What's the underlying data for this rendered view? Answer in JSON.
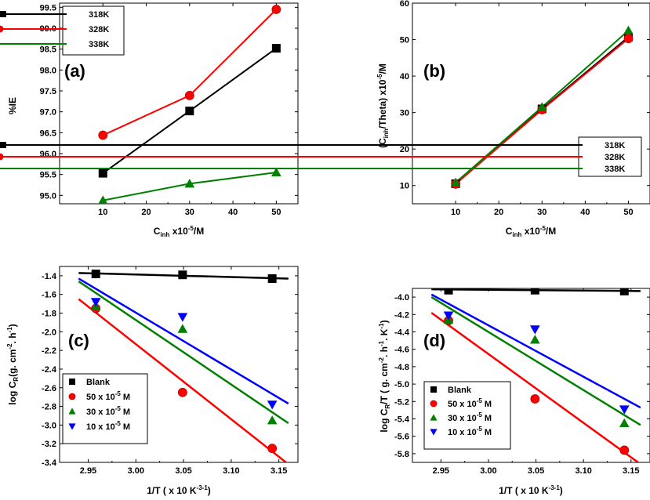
{
  "chart_data": [
    {
      "id": "a",
      "type": "line",
      "panel_label": "(a)",
      "xlabel": {
        "main": "C",
        "sub": "inh",
        "rest": " x10",
        "sup": "-5",
        "tail": "/M"
      },
      "ylabel": {
        "main": "%IE"
      },
      "xlim": [
        0,
        55
      ],
      "ylim": [
        94.8,
        99.6
      ],
      "x_ticks": [
        10,
        20,
        30,
        40,
        50
      ],
      "x_tick_labels": [
        "10",
        "20",
        "30",
        "40",
        "50"
      ],
      "y_ticks": [
        95.0,
        95.5,
        96.0,
        96.5,
        97.0,
        97.5,
        98.0,
        98.5,
        99.0,
        99.5
      ],
      "y_tick_labels": [
        "95.0",
        "95.5",
        "96.0",
        "96.5",
        "97.0",
        "97.5",
        "98.0",
        "98.5",
        "99.0",
        "99.5"
      ],
      "legend_position": "top-left",
      "x": [
        10,
        30,
        50
      ],
      "series": [
        {
          "name": "318K",
          "color": "#000000",
          "marker": "square",
          "values": [
            95.53,
            97.02,
            98.52
          ]
        },
        {
          "name": "328K",
          "color": "#ff0000",
          "marker": "circle",
          "values": [
            96.44,
            97.39,
            99.45
          ]
        },
        {
          "name": "338K",
          "color": "#008000",
          "marker": "triangle-up",
          "values": [
            94.88,
            95.28,
            95.55
          ]
        }
      ]
    },
    {
      "id": "b",
      "type": "line",
      "panel_label": "(b)",
      "xlabel": {
        "main": "C",
        "sub": "inh",
        "rest": " x10",
        "sup": "-5",
        "tail": "/M"
      },
      "ylabel": {
        "main": "(C",
        "sub": "inh",
        "rest": "/Theta) x10",
        "sup": "-5",
        "tail": "/M"
      },
      "xlim": [
        0,
        55
      ],
      "ylim": [
        5,
        60
      ],
      "x_ticks": [
        10,
        20,
        30,
        40,
        50
      ],
      "x_tick_labels": [
        "10",
        "20",
        "30",
        "40",
        "50"
      ],
      "y_ticks": [
        10,
        20,
        30,
        40,
        50,
        60
      ],
      "y_tick_labels": [
        "10",
        "20",
        "30",
        "40",
        "50",
        "60"
      ],
      "legend_position": "right",
      "x": [
        10,
        30,
        50
      ],
      "series": [
        {
          "name": "318K",
          "color": "#000000",
          "marker": "square",
          "values": [
            10.5,
            31.0,
            50.7
          ]
        },
        {
          "name": "328K",
          "color": "#ff0000",
          "marker": "circle",
          "values": [
            10.4,
            30.8,
            50.3
          ]
        },
        {
          "name": "338K",
          "color": "#008000",
          "marker": "triangle-up",
          "values": [
            10.8,
            31.5,
            52.5
          ]
        }
      ]
    },
    {
      "id": "c",
      "type": "scatter",
      "panel_label": "(c)",
      "xlabel": {
        "main": "1/T ( x 10",
        "sup": "-3",
        "rest": " K",
        "sup2": "-1",
        "tail": ")"
      },
      "ylabel": {
        "main": "log C",
        "sub": "R",
        "rest": "(g. cm",
        "sup": "-2",
        "rest2": ". h",
        "sup2": "-1",
        "tail": ")"
      },
      "xlim": [
        2.92,
        3.17
      ],
      "ylim": [
        -3.4,
        -1.3
      ],
      "x_ticks": [
        2.95,
        3.0,
        3.05,
        3.1,
        3.15
      ],
      "x_tick_labels": [
        "2.95",
        "3.00",
        "3.05",
        "3.10",
        "3.15"
      ],
      "y_ticks": [
        -3.4,
        -3.2,
        -3.0,
        -2.8,
        -2.6,
        -2.4,
        -2.2,
        -2.0,
        -1.8,
        -1.6,
        -1.4
      ],
      "y_tick_labels": [
        "-3.4",
        "-3.2",
        "-3.0",
        "-2.8",
        "-2.6",
        "-2.4",
        "-2.2",
        "-2.0",
        "-1.8",
        "-1.6",
        "-1.4"
      ],
      "legend_position": "bottom-left",
      "x": [
        2.958,
        3.049,
        3.143
      ],
      "fit_x_range": [
        2.94,
        3.16
      ],
      "series": [
        {
          "name": "Blank",
          "color": "#000000",
          "marker": "square",
          "values": [
            -1.38,
            -1.39,
            -1.43
          ],
          "fit": [
            -1.37,
            -1.43
          ]
        },
        {
          "name": "50 x 10",
          "sup": "-5",
          "suffix": " M",
          "color": "#ff0000",
          "marker": "circle",
          "values": [
            -1.75,
            -2.65,
            -3.25
          ],
          "fit": [
            -1.65,
            -3.42
          ]
        },
        {
          "name": "30 x 10",
          "sup": "-5",
          "suffix": " M",
          "color": "#008000",
          "marker": "triangle-up",
          "values": [
            -1.73,
            -1.97,
            -2.95
          ],
          "fit": [
            -1.46,
            -2.98
          ]
        },
        {
          "name": "10 x 10",
          "sup": "-5",
          "suffix": " M",
          "color": "#0000ff",
          "marker": "triangle-down",
          "values": [
            -1.68,
            -1.84,
            -2.78
          ],
          "fit": [
            -1.43,
            -2.77
          ]
        }
      ]
    },
    {
      "id": "d",
      "type": "scatter",
      "panel_label": "(d)",
      "xlabel": {
        "main": "1/T ( x 10",
        "sup": "-3",
        "rest": " K",
        "sup2": "-1",
        "tail": ")"
      },
      "ylabel": {
        "main": "log C",
        "sub": "R",
        "rest": "/T ( g. cm",
        "sup": "-2",
        "rest2": ". h",
        "sup2": "-1",
        "rest3": ". K",
        "sup3": "-1",
        "tail": ")"
      },
      "xlim": [
        2.92,
        3.17
      ],
      "ylim": [
        -5.9,
        -3.9
      ],
      "x_ticks": [
        2.95,
        3.0,
        3.05,
        3.1,
        3.15
      ],
      "x_tick_labels": [
        "2.95",
        "3.00",
        "3.05",
        "3.10",
        "3.15"
      ],
      "y_ticks": [
        -5.8,
        -5.6,
        -5.4,
        -5.2,
        -5.0,
        -4.8,
        -4.6,
        -4.4,
        -4.2,
        -4.0
      ],
      "y_tick_labels": [
        "-5.8",
        "-5.6",
        "-5.4",
        "-5.2",
        "-5.0",
        "-4.8",
        "-4.6",
        "-4.4",
        "-4.2",
        "-4.0"
      ],
      "legend_position": "bottom-left",
      "x": [
        2.958,
        3.049,
        3.143
      ],
      "fit_x_range": [
        2.94,
        3.16
      ],
      "series": [
        {
          "name": "Blank",
          "color": "#000000",
          "marker": "square",
          "values": [
            -3.92,
            -3.92,
            -3.93
          ],
          "fit": [
            -3.91,
            -3.93
          ]
        },
        {
          "name": "50 x 10",
          "sup": "-5",
          "suffix": " M",
          "color": "#ff0000",
          "marker": "circle",
          "values": [
            -4.27,
            -5.17,
            -5.76
          ],
          "fit": [
            -4.18,
            -5.92
          ]
        },
        {
          "name": "30 x 10",
          "sup": "-5",
          "suffix": " M",
          "color": "#008000",
          "marker": "triangle-up",
          "values": [
            -4.26,
            -4.49,
            -5.45
          ],
          "fit": [
            -4.0,
            -5.47
          ]
        },
        {
          "name": "10 x 10",
          "sup": "-5",
          "suffix": " M",
          "color": "#0000ff",
          "marker": "triangle-down",
          "values": [
            -4.21,
            -4.37,
            -5.29
          ],
          "fit": [
            -3.97,
            -5.27
          ]
        }
      ]
    }
  ]
}
